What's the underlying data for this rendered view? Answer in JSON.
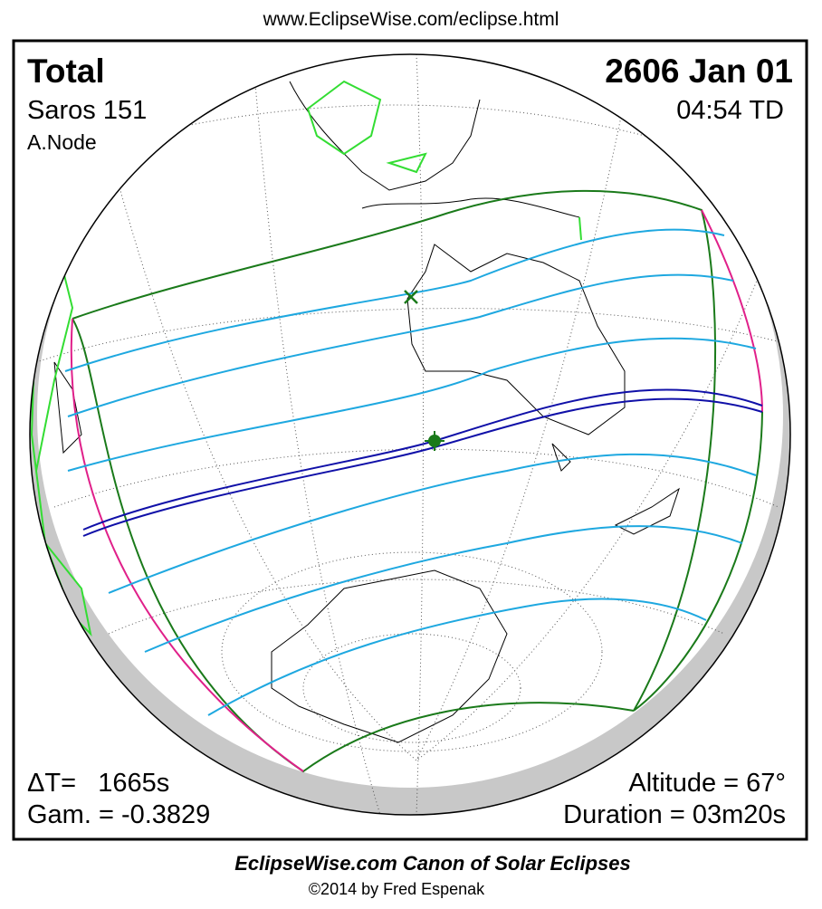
{
  "header": {
    "url": "www.EclipseWise.com/eclipse.html"
  },
  "panel": {
    "eclipse_type": "Total",
    "date": "2606 Jan 01",
    "saros": "Saros 151",
    "time": "04:54 TD",
    "node": "A.Node",
    "delta_t": "ΔT=   1665s",
    "gamma": "Gam. = -0.3829",
    "altitude": "Altitude = 67°",
    "duration": "Duration = 03m20s"
  },
  "footer": {
    "title": "EclipseWise.com Canon of Solar Eclipses",
    "credit": "©2014 by Fred Espenak"
  }
}
